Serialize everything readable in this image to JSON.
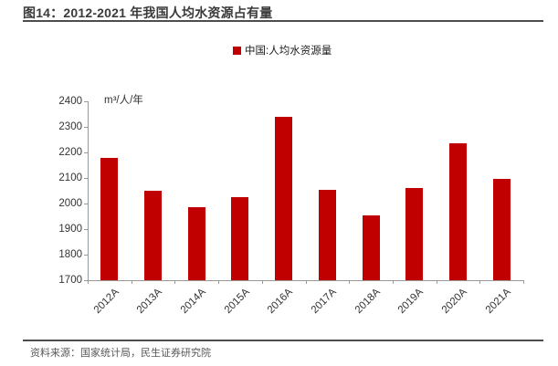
{
  "header": {
    "title": "图14：2012-2021 年我国人均水资源占有量"
  },
  "legend": {
    "label": "中国:人均水资源量",
    "marker_color": "#C00000"
  },
  "chart_data": {
    "type": "bar",
    "title": "图14：2012-2021 年我国人均水资源占有量",
    "categories": [
      "2012A",
      "2013A",
      "2014A",
      "2015A",
      "2016A",
      "2017A",
      "2018A",
      "2019A",
      "2020A",
      "2021A"
    ],
    "values": [
      2180,
      2050,
      1985,
      2025,
      2340,
      2055,
      1955,
      2060,
      2235,
      2095
    ],
    "series_name": "中国:人均水资源量",
    "unit_label": "m³/人/年",
    "xlabel": "",
    "ylabel": "m³/人/年",
    "ylim": [
      1700,
      2400
    ],
    "ytick_step": 100,
    "grid": false,
    "legend_position": "top-center",
    "bar_color": "#C00000"
  },
  "colors": {
    "bar": "#C00000",
    "axis": "#999999",
    "axis_text": "#333333",
    "title_text": "#3a3a3a",
    "rule": "#4d4d4d",
    "source_text": "#595959"
  },
  "footer": {
    "source": "资料来源：国家统计局，民生证券研究院"
  }
}
